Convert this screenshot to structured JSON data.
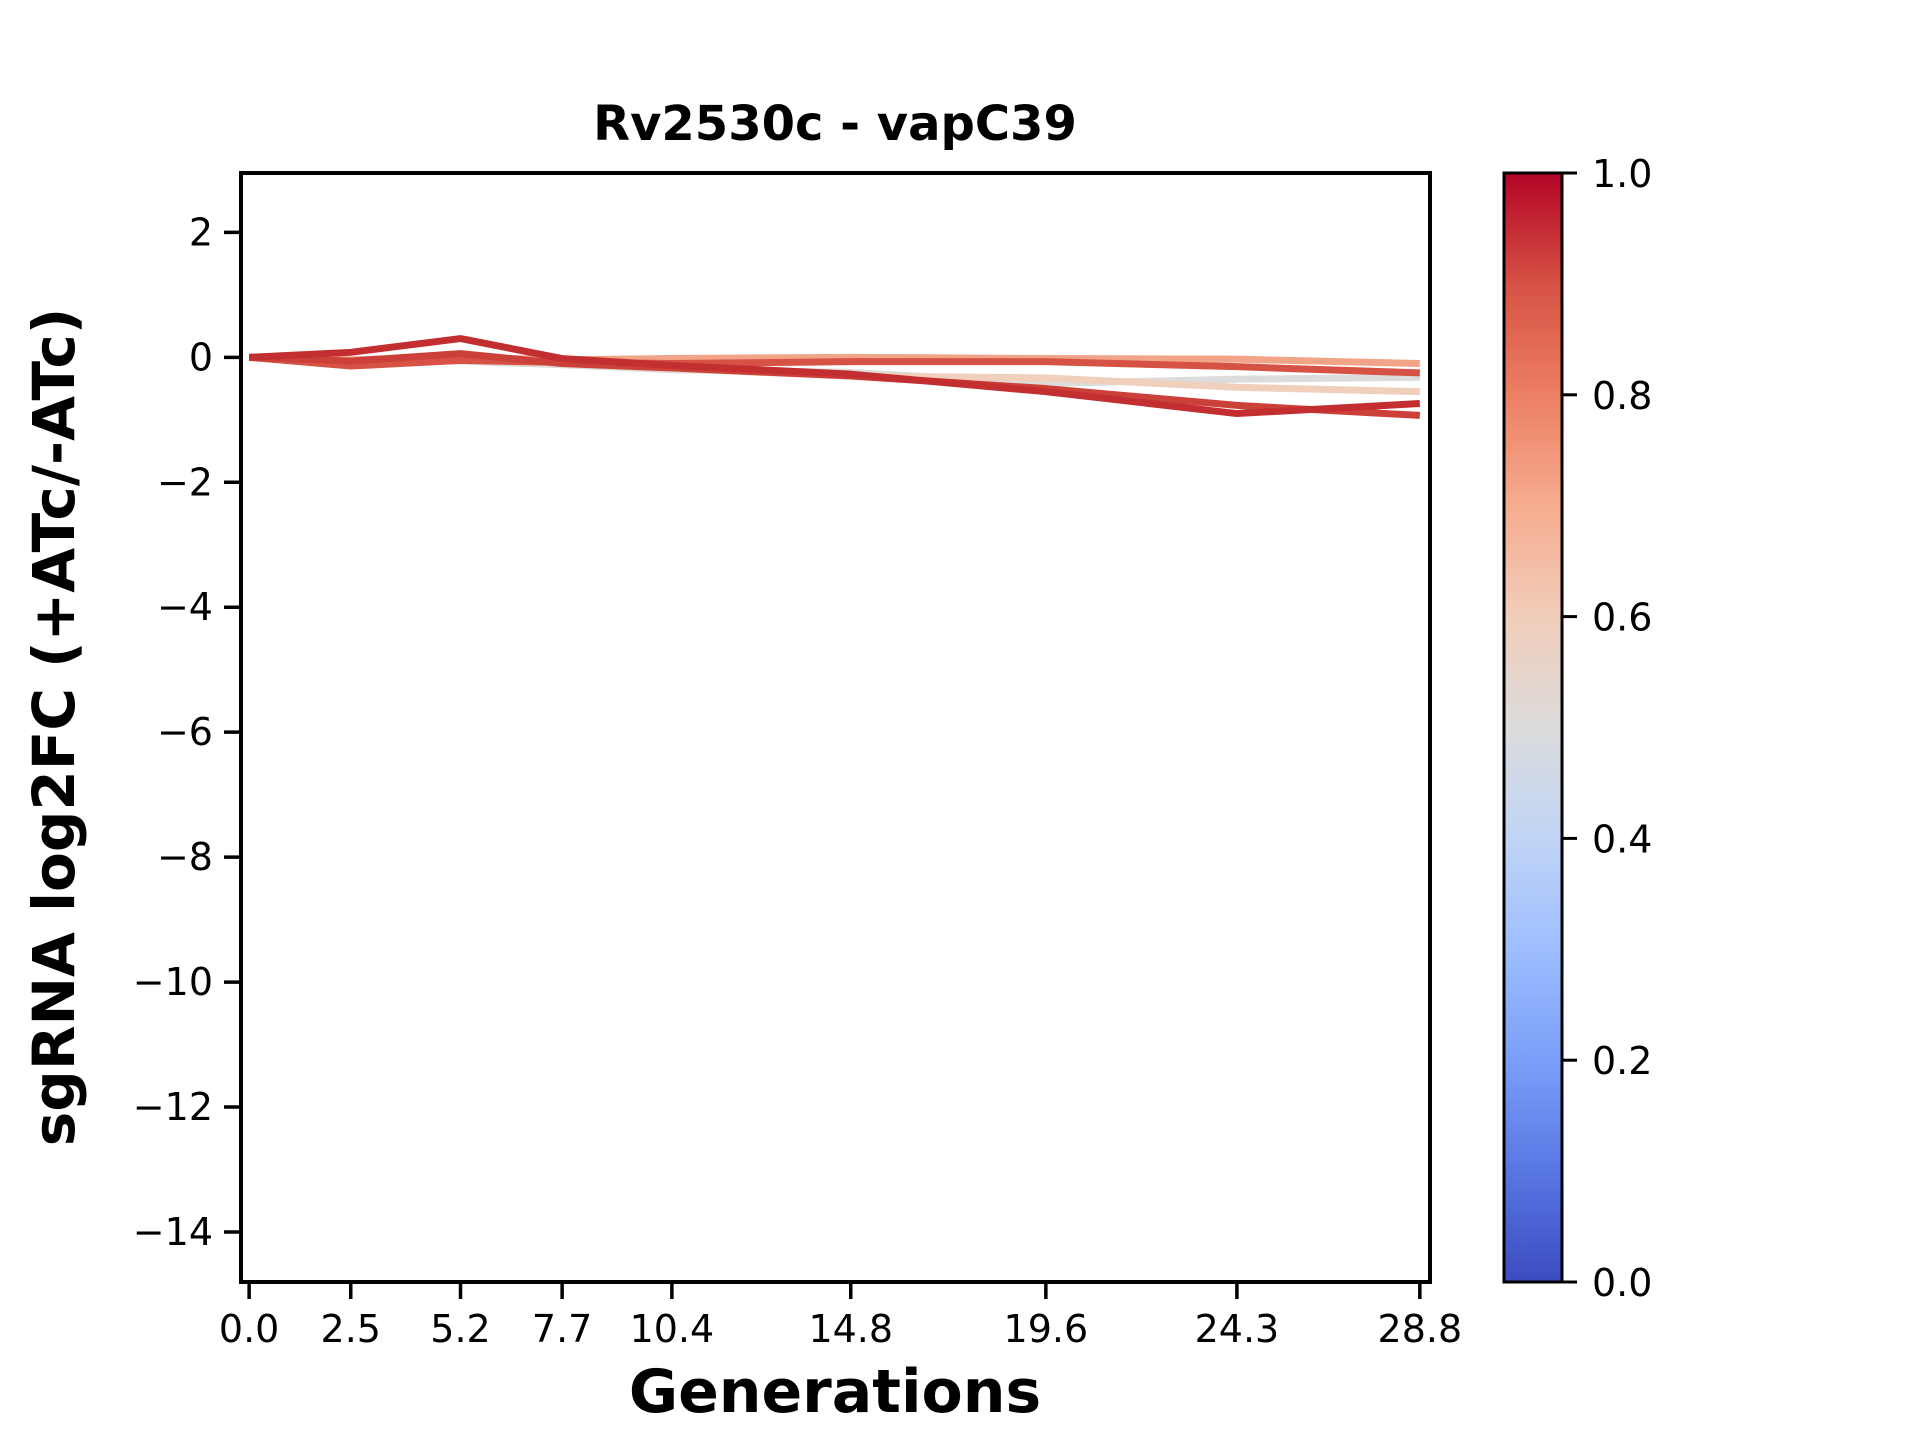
{
  "figure": {
    "background": "#ffffff",
    "frame_color": "#000000"
  },
  "chart_data": {
    "type": "line",
    "title": "Rv2530c - vapC39",
    "xlabel": "Generations",
    "ylabel": "sgRNA log2FC (+ATc/-ATc)",
    "grid": false,
    "legend": false,
    "xlim": [
      -0.2,
      29.05
    ],
    "ylim": [
      -14.8,
      2.95
    ],
    "x": [
      0.0,
      2.5,
      5.2,
      7.7,
      10.4,
      14.8,
      19.6,
      24.3,
      28.8
    ],
    "x_tick_labels": [
      "0.0",
      "2.5",
      "5.2",
      "7.7",
      "10.4",
      "14.8",
      "19.6",
      "24.3",
      "28.8"
    ],
    "y_tick_values": [
      2,
      0,
      -2,
      -4,
      -6,
      -8,
      -10,
      -12,
      -14
    ],
    "y_tick_labels": [
      "2",
      "0",
      "−2",
      "−4",
      "−6",
      "−8",
      "−10",
      "−12",
      "−14"
    ],
    "series": [
      {
        "name": "line-6",
        "cmap_value": 0.5,
        "color": "#dcdcdc",
        "values": [
          0.0,
          -0.05,
          -0.06,
          -0.12,
          -0.2,
          -0.24,
          -0.42,
          -0.35,
          -0.32
        ]
      },
      {
        "name": "line-5",
        "cmap_value": 0.58,
        "color": "#f0d0bd",
        "values": [
          0.0,
          -0.07,
          -0.04,
          -0.1,
          -0.18,
          -0.3,
          -0.33,
          -0.48,
          -0.55
        ]
      },
      {
        "name": "line-4",
        "cmap_value": 0.7,
        "color": "#f2a488",
        "values": [
          0.0,
          -0.04,
          0.0,
          -0.04,
          -0.02,
          0.0,
          -0.02,
          -0.03,
          -0.1
        ]
      },
      {
        "name": "line-3",
        "cmap_value": 0.85,
        "color": "#d65244",
        "values": [
          0.0,
          -0.14,
          -0.05,
          -0.08,
          -0.1,
          -0.07,
          -0.07,
          -0.15,
          -0.25
        ]
      },
      {
        "name": "line-2",
        "cmap_value": 0.9,
        "color": "#cc403a",
        "values": [
          0.0,
          -0.06,
          0.06,
          -0.1,
          -0.17,
          -0.3,
          -0.5,
          -0.77,
          -0.93
        ]
      },
      {
        "name": "line-1",
        "cmap_value": 0.95,
        "color": "#c32e31",
        "values": [
          0.0,
          0.08,
          0.3,
          -0.02,
          -0.13,
          -0.27,
          -0.55,
          -0.9,
          -0.74
        ]
      }
    ],
    "colorbar": {
      "colormap": "coolwarm",
      "tick_values": [
        1.0,
        0.8,
        0.6,
        0.4,
        0.2,
        0.0
      ],
      "tick_labels": [
        "1.0",
        "0.8",
        "0.6",
        "0.4",
        "0.2",
        "0.0"
      ],
      "range": [
        0.0,
        1.0
      ],
      "stops": [
        {
          "t": 0.0,
          "color": "#3b4cc0"
        },
        {
          "t": 0.1,
          "color": "#5977e3"
        },
        {
          "t": 0.2,
          "color": "#7b9ff9"
        },
        {
          "t": 0.3,
          "color": "#9ebeff"
        },
        {
          "t": 0.4,
          "color": "#c0d4f5"
        },
        {
          "t": 0.5,
          "color": "#dcdcdc"
        },
        {
          "t": 0.6,
          "color": "#f1cdba"
        },
        {
          "t": 0.7,
          "color": "#f6ac8f"
        },
        {
          "t": 0.8,
          "color": "#ec7f63"
        },
        {
          "t": 0.9,
          "color": "#d65244"
        },
        {
          "t": 1.0,
          "color": "#b40426"
        }
      ]
    }
  }
}
